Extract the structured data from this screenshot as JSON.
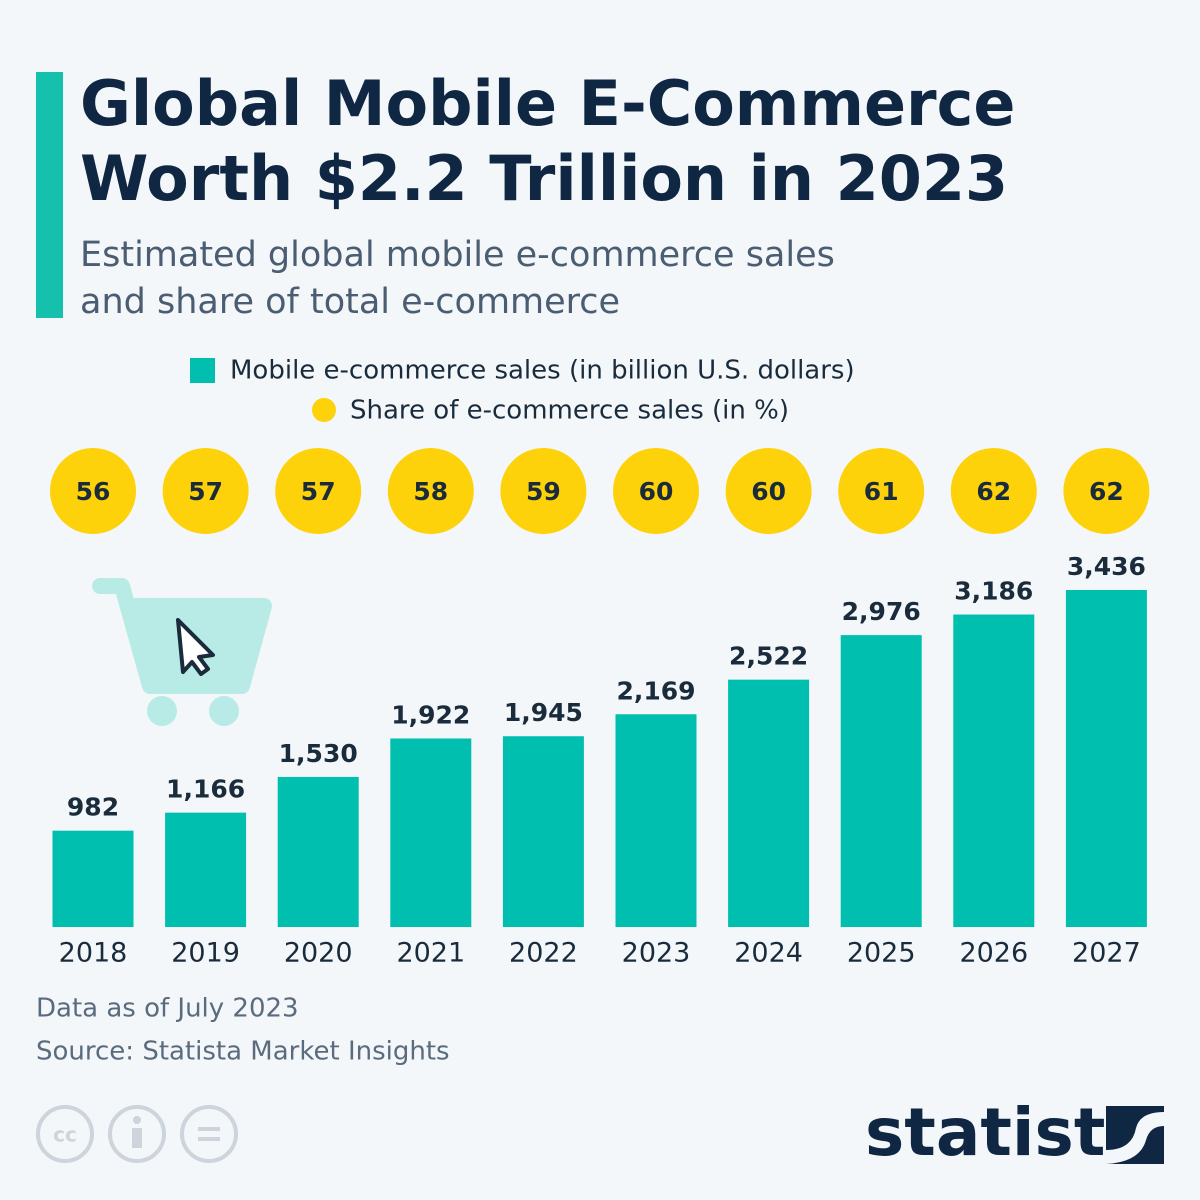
{
  "chart_data": {
    "type": "bar",
    "title": "Global Mobile E-Commerce Worth $2.2 Trillion in 2023",
    "subtitle": "Estimated global mobile e-commerce sales and share of total e-commerce",
    "categories": [
      "2018",
      "2019",
      "2020",
      "2021",
      "2022",
      "2023",
      "2024",
      "2025",
      "2026",
      "2027"
    ],
    "series": [
      {
        "name": "Mobile e-commerce sales (in billion U.S. dollars)",
        "type": "bar",
        "color": "#00bfae",
        "values": [
          982,
          1166,
          1530,
          1922,
          1945,
          2169,
          2522,
          2976,
          3186,
          3436
        ],
        "value_labels": [
          "982",
          "1,166",
          "1,530",
          "1,922",
          "1,945",
          "2,169",
          "2,522",
          "2,976",
          "3,186",
          "3,436"
        ]
      },
      {
        "name": "Share of e-commerce sales (in %)",
        "type": "circle",
        "color": "#fdd20a",
        "values": [
          56,
          57,
          57,
          58,
          59,
          60,
          60,
          61,
          62,
          62
        ]
      }
    ],
    "notes": [
      "Data as of July 2023",
      "Source: Statista Market Insights"
    ],
    "brand": "statista"
  }
}
